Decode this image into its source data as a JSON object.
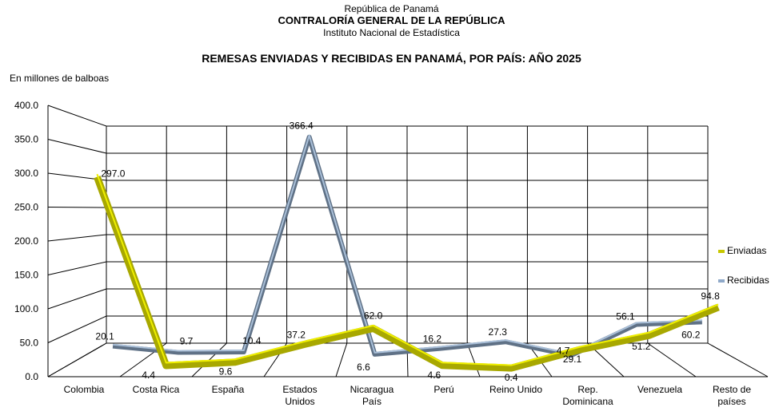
{
  "header": {
    "line1": "República de Panamá",
    "line2": "CONTRALORÍA GENERAL DE LA REPÚBLICA",
    "line3": "Instituto Nacional de Estadística"
  },
  "chart_data": {
    "type": "line",
    "title": "REMESAS ENVIADAS Y RECIBIDAS EN PANAMÁ, POR PAÍS: AÑO 2025",
    "ylabel": "En millones de balboas",
    "xlabel": "",
    "ylim": [
      0,
      400
    ],
    "yticks": [
      "0.0",
      "50.0",
      "100.0",
      "150.0",
      "200.0",
      "250.0",
      "300.0",
      "350.0",
      "400.0"
    ],
    "grid": true,
    "legend_position": "right",
    "categories": [
      [
        "Colombia"
      ],
      [
        "Costa Rica"
      ],
      [
        "España"
      ],
      [
        "Estados",
        "Unidos"
      ],
      [
        "Nicaragua",
        "País"
      ],
      [
        "Perú"
      ],
      [
        "Reino Unido"
      ],
      [
        "Rep.",
        "Dominicana"
      ],
      [
        "Venezuela"
      ],
      [
        "Resto de",
        "países"
      ]
    ],
    "series": [
      {
        "name": "Enviadas",
        "color": "#c8c800",
        "values": [
          297.0,
          4.4,
          9.6,
          37.2,
          62.0,
          4.6,
          0.4,
          29.1,
          51.2,
          94.8
        ],
        "labels": [
          "297.0",
          "4.4",
          "9.6",
          "37.2",
          "62.0",
          "4.6",
          "0.4",
          "29.1",
          "51.2",
          "94.8"
        ]
      },
      {
        "name": "Recibidas",
        "color": "#8fa9c9",
        "values": [
          20.1,
          9.7,
          10.4,
          366.4,
          6.6,
          16.2,
          27.3,
          4.7,
          56.1,
          60.2
        ],
        "labels": [
          "20.1",
          "9.7",
          "10.4",
          "366.4",
          "6.6",
          "16.2",
          "27.3",
          "4.7",
          "56.1",
          "60.2"
        ]
      }
    ]
  }
}
